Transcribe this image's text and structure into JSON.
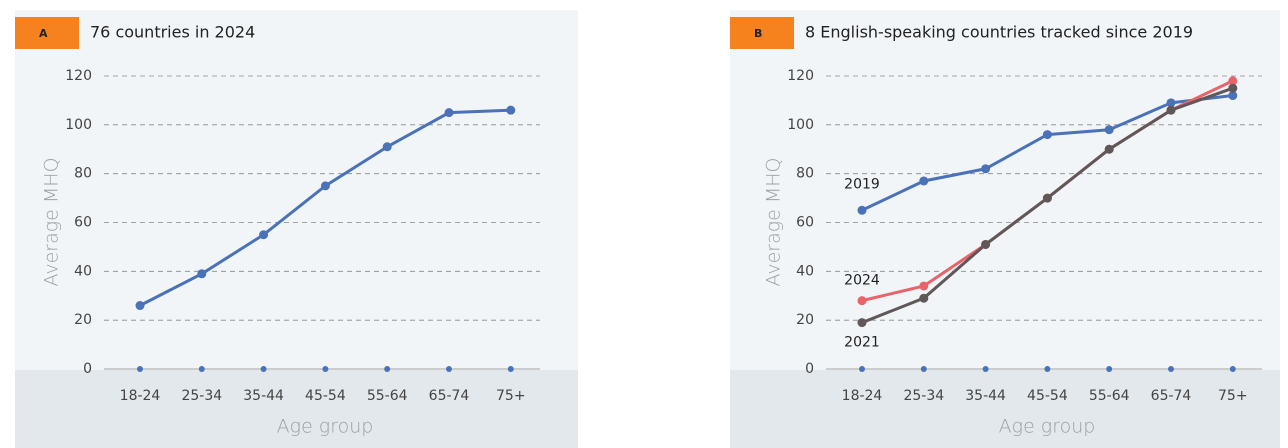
{
  "chart_data": [
    {
      "type": "line",
      "label": "A",
      "title": "76 countries in 2024",
      "y_label": "Average MHQ",
      "x_label": "Age group",
      "categories": [
        "18-24",
        "25-34",
        "35-44",
        "45-54",
        "55-64",
        "65-74",
        "75+"
      ],
      "series": [
        {
          "color": "#4a72b8",
          "values": [
            26,
            39,
            55,
            75,
            91,
            105,
            106
          ]
        }
      ],
      "ylim": [
        0,
        120
      ],
      "yticks": [
        0,
        20,
        40,
        60,
        80,
        100,
        120
      ],
      "grid": true
    },
    {
      "type": "line",
      "label": "B",
      "title": "8 English-speaking countries tracked since 2019",
      "y_label": "Average MHQ",
      "x_label": "Age group",
      "categories": [
        "18-24",
        "25-34",
        "35-44",
        "45-54",
        "55-64",
        "65-74",
        "75+"
      ],
      "series": [
        {
          "name": "2019",
          "color": "#4a72b8",
          "values": [
            65,
            77,
            82,
            96,
            98,
            109,
            112
          ]
        },
        {
          "name": "2024",
          "color": "#e8646a",
          "values": [
            28,
            34,
            51,
            70,
            90,
            106,
            118
          ]
        },
        {
          "name": "2021",
          "color": "#5f5758",
          "values": [
            19,
            29,
            51,
            70,
            90,
            106,
            115
          ]
        }
      ],
      "ylim": [
        0,
        120
      ],
      "yticks": [
        0,
        20,
        40,
        60,
        80,
        100,
        120
      ],
      "grid": true
    }
  ]
}
